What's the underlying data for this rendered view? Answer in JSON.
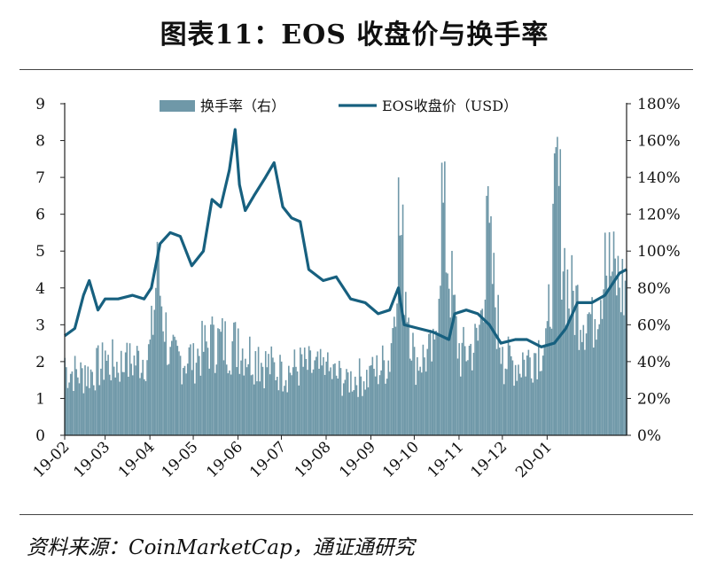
{
  "title": "图表11：EOS 收盘价与换手率",
  "source": "资料来源：CoinMarketCap，通证通研究",
  "colors": {
    "price_line": "#17607f",
    "turnover_bar": "#6f98a8",
    "axis": "#222222"
  },
  "chart_data": {
    "type": "bar+line",
    "legend_placement": "top",
    "grid": false,
    "x_tick_labels": [
      "19-02",
      "19-03",
      "19-04",
      "19-05",
      "19-06",
      "19-07",
      "19-08",
      "19-09",
      "19-10",
      "19-11",
      "19-12",
      "20-01"
    ],
    "x_range": [
      "2019-02-01",
      "2020-02-25"
    ],
    "y_left": {
      "range": [
        0,
        9
      ],
      "ticks": [
        "0",
        "1",
        "2",
        "3",
        "4",
        "5",
        "6",
        "7",
        "8",
        "9"
      ]
    },
    "y_right": {
      "range": [
        0,
        180
      ],
      "ticks": [
        "0%",
        "20%",
        "40%",
        "60%",
        "80%",
        "100%",
        "120%",
        "140%",
        "160%",
        "180%"
      ]
    },
    "series": [
      {
        "name": "换手率（右）",
        "type": "bar",
        "axis": "right",
        "unit": "%",
        "x": [
          "2019-02-01",
          "2019-02-15",
          "2019-03-01",
          "2019-03-15",
          "2019-04-01",
          "2019-04-06",
          "2019-04-15",
          "2019-05-01",
          "2019-05-15",
          "2019-06-01",
          "2019-06-15",
          "2019-07-01",
          "2019-07-15",
          "2019-08-01",
          "2019-08-15",
          "2019-09-01",
          "2019-09-15",
          "2019-09-20",
          "2019-10-01",
          "2019-10-15",
          "2019-10-20",
          "2019-11-01",
          "2019-11-15",
          "2019-11-20",
          "2019-12-01",
          "2019-12-15",
          "2020-01-01",
          "2020-01-08",
          "2020-01-15",
          "2020-02-01",
          "2020-02-10",
          "2020-02-25"
        ],
        "values": [
          42,
          38,
          46,
          45,
          52,
          105,
          48,
          50,
          60,
          58,
          48,
          40,
          44,
          40,
          36,
          38,
          50,
          140,
          48,
          52,
          148,
          50,
          60,
          130,
          48,
          45,
          62,
          162,
          90,
          75,
          110,
          90
        ]
      },
      {
        "name": "EOS收盘价（USD）",
        "type": "line",
        "axis": "left",
        "unit": "USD",
        "x": [
          "2019-02-01",
          "2019-02-08",
          "2019-02-14",
          "2019-02-18",
          "2019-02-24",
          "2019-03-01",
          "2019-03-10",
          "2019-03-20",
          "2019-03-28",
          "2019-04-02",
          "2019-04-08",
          "2019-04-15",
          "2019-04-22",
          "2019-04-30",
          "2019-05-08",
          "2019-05-14",
          "2019-05-20",
          "2019-05-26",
          "2019-05-30",
          "2019-06-02",
          "2019-06-06",
          "2019-06-12",
          "2019-06-20",
          "2019-06-26",
          "2019-07-02",
          "2019-07-08",
          "2019-07-14",
          "2019-07-20",
          "2019-07-30",
          "2019-08-08",
          "2019-08-18",
          "2019-08-28",
          "2019-09-06",
          "2019-09-14",
          "2019-09-20",
          "2019-09-24",
          "2019-10-04",
          "2019-10-14",
          "2019-10-25",
          "2019-10-29",
          "2019-11-06",
          "2019-11-14",
          "2019-11-22",
          "2019-11-30",
          "2019-12-10",
          "2019-12-18",
          "2019-12-28",
          "2020-01-06",
          "2020-01-14",
          "2020-01-22",
          "2020-02-01",
          "2020-02-10",
          "2020-02-20",
          "2020-02-25"
        ],
        "values": [
          2.7,
          2.9,
          3.8,
          4.2,
          3.4,
          3.7,
          3.7,
          3.8,
          3.7,
          4.0,
          5.2,
          5.5,
          5.4,
          4.6,
          5.0,
          6.4,
          6.2,
          7.2,
          8.3,
          6.8,
          6.1,
          6.5,
          7.0,
          7.4,
          6.2,
          5.9,
          5.8,
          4.5,
          4.2,
          4.3,
          3.7,
          3.6,
          3.3,
          3.4,
          4.0,
          3.0,
          2.9,
          2.8,
          2.6,
          3.3,
          3.4,
          3.3,
          3.0,
          2.5,
          2.6,
          2.6,
          2.4,
          2.5,
          2.9,
          3.6,
          3.6,
          3.8,
          4.4,
          4.5
        ]
      }
    ]
  }
}
